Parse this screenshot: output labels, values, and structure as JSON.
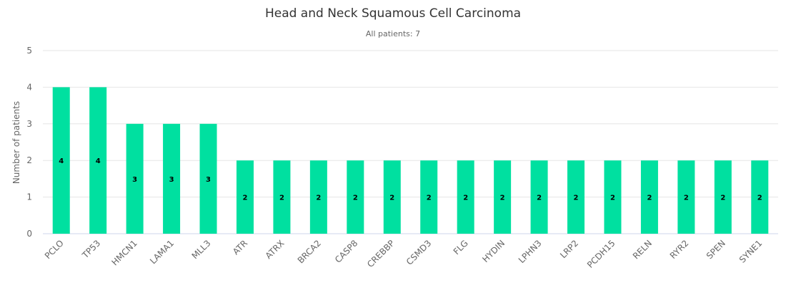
{
  "chart_data": {
    "type": "bar",
    "title": "Head and Neck Squamous Cell Carcinoma",
    "subtitle": "All patients: 7",
    "xlabel": "",
    "ylabel": "Number of patients",
    "ylim": [
      0,
      5
    ],
    "yticks": [
      0,
      1,
      2,
      3,
      4,
      5
    ],
    "grid": true,
    "legend": "none",
    "bar_color": "#00E0A0",
    "categories": [
      "PCLO",
      "TP53",
      "HMCN1",
      "LAMA1",
      "MLL3",
      "ATR",
      "ATRX",
      "BRCA2",
      "CASP8",
      "CREBBP",
      "CSMD3",
      "FLG",
      "HYDIN",
      "LPHN3",
      "LRP2",
      "PCDH15",
      "RELN",
      "RYR2",
      "SPEN",
      "SYNE1"
    ],
    "values": [
      4,
      4,
      3,
      3,
      3,
      2,
      2,
      2,
      2,
      2,
      2,
      2,
      2,
      2,
      2,
      2,
      2,
      2,
      2,
      2
    ],
    "data_labels": true
  }
}
